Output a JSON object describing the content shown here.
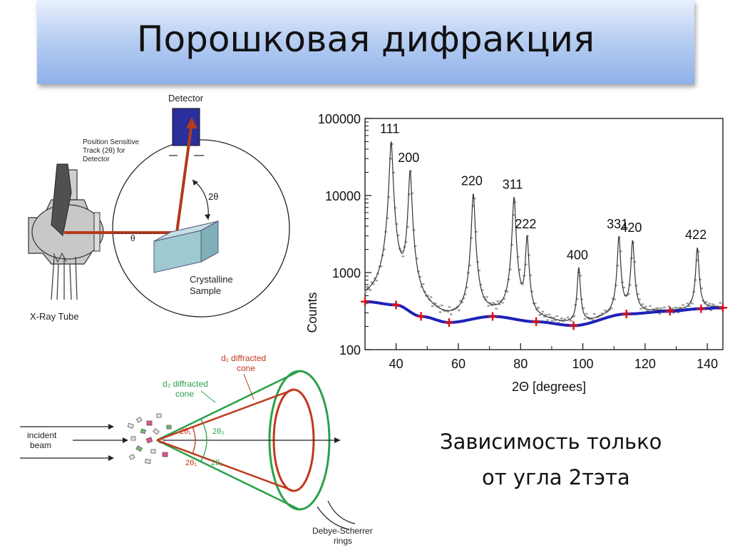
{
  "slide": {
    "title": "Порошковая дифракция",
    "caption_line1": "Зависимость только",
    "caption_line2": "от угла 2тэта"
  },
  "diffractometer": {
    "detector_label": "Detector",
    "track_label_1": "Position Sensitive",
    "track_label_2": "Track (2θ) for",
    "track_label_3": "Detector",
    "two_theta_label": "2θ",
    "theta_label": "θ",
    "sample_label_1": "Crystalline",
    "sample_label_2": "Sample",
    "tube_label": "X-Ray Tube",
    "colors": {
      "beam": "#b33a1c",
      "detector": "#2a2f9b",
      "sample": "#9ec9d1",
      "tube": "#c8c8c8"
    }
  },
  "cone": {
    "incident_1": "incident",
    "incident_2": "beam",
    "d1_label_1": "d₁ diffracted",
    "d1_label_2": "cone",
    "d2_label_1": "d₂ diffracted",
    "d2_label_2": "cone",
    "angle_2theta1": "2θ₁",
    "angle_2theta2": "2θ₂",
    "rings_1": "Debye-Scherrer",
    "rings_2": "rings",
    "colors": {
      "d1": "#c0391b",
      "d2": "#2aa14a"
    }
  },
  "chart_data": {
    "type": "line",
    "xlabel": "2Θ [degrees]",
    "ylabel": "Counts",
    "xlim": [
      30,
      145
    ],
    "ylim": [
      100,
      100000
    ],
    "log_y": true,
    "x_ticks": [
      40,
      60,
      80,
      100,
      120,
      140
    ],
    "y_ticks": [
      100,
      1000,
      10000,
      100000
    ],
    "y_tick_labels": [
      "100",
      "1000",
      "10000",
      "100000"
    ],
    "peaks": [
      {
        "label": "111",
        "x": 38.4,
        "y": 50000
      },
      {
        "label": "200",
        "x": 44.5,
        "y": 21000
      },
      {
        "label": "220",
        "x": 64.8,
        "y": 10500
      },
      {
        "label": "311",
        "x": 77.9,
        "y": 9500
      },
      {
        "label": "222",
        "x": 82.1,
        "y": 2900
      },
      {
        "label": "400",
        "x": 98.7,
        "y": 1150
      },
      {
        "label": "331",
        "x": 111.6,
        "y": 2900
      },
      {
        "label": "420",
        "x": 116.0,
        "y": 2600
      },
      {
        "label": "422",
        "x": 136.8,
        "y": 2100
      }
    ],
    "background_points": [
      {
        "x": 30,
        "y": 420
      },
      {
        "x": 40,
        "y": 380
      },
      {
        "x": 48,
        "y": 270
      },
      {
        "x": 57,
        "y": 225
      },
      {
        "x": 71,
        "y": 270
      },
      {
        "x": 85,
        "y": 230
      },
      {
        "x": 97,
        "y": 205
      },
      {
        "x": 114,
        "y": 290
      },
      {
        "x": 128,
        "y": 315
      },
      {
        "x": 138,
        "y": 340
      },
      {
        "x": 145,
        "y": 350
      }
    ],
    "colors": {
      "data": "#333333",
      "points": "#9a9a9a",
      "background": "#1e22b8",
      "markers": "#e01010"
    }
  }
}
